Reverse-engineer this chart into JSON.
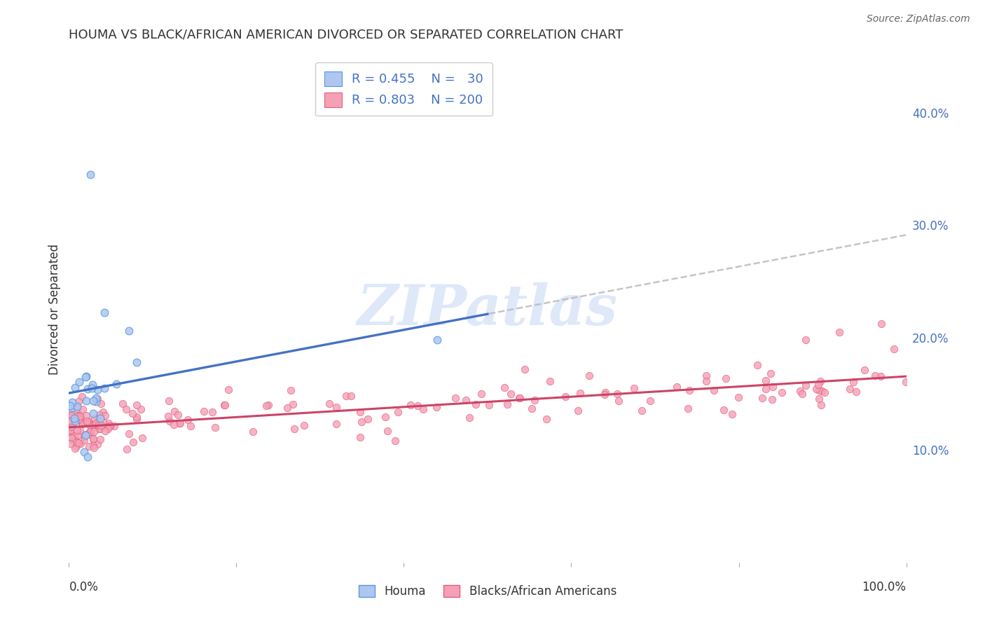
{
  "title": "HOUMA VS BLACK/AFRICAN AMERICAN DIVORCED OR SEPARATED CORRELATION CHART",
  "source": "Source: ZipAtlas.com",
  "ylabel": "Divorced or Separated",
  "ytick_values": [
    0.1,
    0.2,
    0.3,
    0.4
  ],
  "xlim": [
    0.0,
    1.0
  ],
  "ylim": [
    0.0,
    0.45
  ],
  "houma_color": "#aec6f0",
  "houma_edge": "#5599dd",
  "pink_color": "#f5a0b5",
  "pink_edge": "#e06080",
  "watermark_text": "ZIPatlas",
  "watermark_color": "#c8daf5",
  "houma_R": 0.455,
  "houma_N": 30,
  "pink_R": 0.803,
  "pink_N": 200,
  "houma_line_color": "#4472c4",
  "pink_line_color": "#cc4466",
  "dash_line_color": "#bbbbbb",
  "background_color": "#ffffff",
  "grid_color": "#cccccc",
  "tick_color": "#4472c4",
  "title_color": "#333333",
  "source_color": "#666666",
  "legend_label_color": "#4472c4",
  "bottom_legend_color": "#333333"
}
